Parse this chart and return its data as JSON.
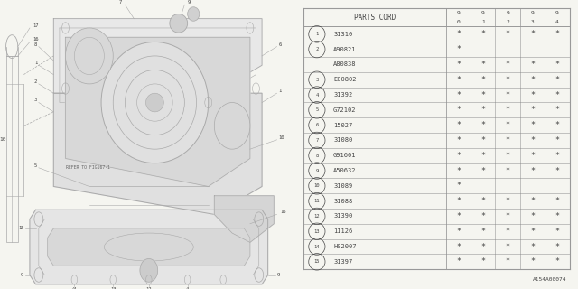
{
  "figure_id": "A154A00074",
  "bg_color": "#f5f5f0",
  "line_color": "#aaaaaa",
  "dark_line": "#777777",
  "text_color": "#444444",
  "table_bg": "#f5f5f0",
  "table_line": "#999999",
  "table": {
    "header_col": "PARTS CORD",
    "year_cols": [
      "9\n0",
      "9\n1",
      "9\n2",
      "9\n3",
      "9\n4"
    ],
    "rows": [
      {
        "num": "1",
        "span": 1,
        "part": "31310",
        "marks": [
          true,
          true,
          true,
          true,
          true
        ]
      },
      {
        "num": "2",
        "span": 2,
        "part": "A90821",
        "marks": [
          true,
          false,
          false,
          false,
          false
        ]
      },
      {
        "num": "",
        "span": 0,
        "part": "A80838",
        "marks": [
          true,
          true,
          true,
          true,
          true
        ]
      },
      {
        "num": "3",
        "span": 1,
        "part": "E00802",
        "marks": [
          true,
          true,
          true,
          true,
          true
        ]
      },
      {
        "num": "4",
        "span": 1,
        "part": "31392",
        "marks": [
          true,
          true,
          true,
          true,
          true
        ]
      },
      {
        "num": "5",
        "span": 1,
        "part": "G72102",
        "marks": [
          true,
          true,
          true,
          true,
          true
        ]
      },
      {
        "num": "6",
        "span": 1,
        "part": "15027",
        "marks": [
          true,
          true,
          true,
          true,
          true
        ]
      },
      {
        "num": "7",
        "span": 1,
        "part": "31080",
        "marks": [
          true,
          true,
          true,
          true,
          true
        ]
      },
      {
        "num": "8",
        "span": 1,
        "part": "G91601",
        "marks": [
          true,
          true,
          true,
          true,
          true
        ]
      },
      {
        "num": "9",
        "span": 1,
        "part": "A50632",
        "marks": [
          true,
          true,
          true,
          true,
          true
        ]
      },
      {
        "num": "10",
        "span": 1,
        "part": "31089",
        "marks": [
          true,
          false,
          false,
          false,
          false
        ]
      },
      {
        "num": "11",
        "span": 1,
        "part": "31088",
        "marks": [
          true,
          true,
          true,
          true,
          true
        ]
      },
      {
        "num": "12",
        "span": 1,
        "part": "31390",
        "marks": [
          true,
          true,
          true,
          true,
          true
        ]
      },
      {
        "num": "13",
        "span": 1,
        "part": "11126",
        "marks": [
          true,
          true,
          true,
          true,
          true
        ]
      },
      {
        "num": "14",
        "span": 1,
        "part": "H02007",
        "marks": [
          true,
          true,
          true,
          true,
          true
        ]
      },
      {
        "num": "15",
        "span": 1,
        "part": "31397",
        "marks": [
          true,
          true,
          true,
          true,
          true
        ]
      }
    ]
  }
}
